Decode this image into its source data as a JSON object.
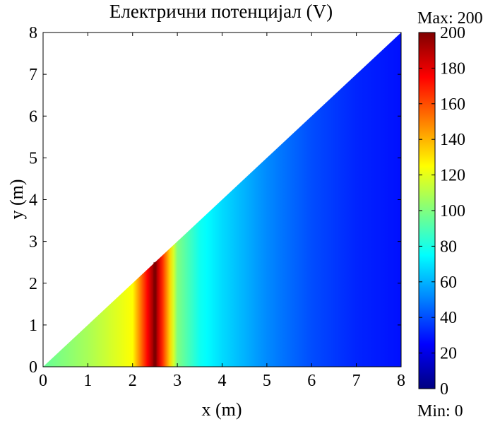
{
  "chart_data": {
    "type": "heatmap",
    "title": "Електрични потенцијал (V)",
    "xlabel": "x (m)",
    "ylabel": "y (m)",
    "xlim": [
      0,
      8
    ],
    "ylim": [
      0,
      8
    ],
    "x_ticks": [
      "0",
      "1",
      "2",
      "3",
      "4",
      "5",
      "6",
      "7",
      "8"
    ],
    "y_ticks": [
      "0",
      "1",
      "2",
      "3",
      "4",
      "5",
      "6",
      "7",
      "8"
    ],
    "domain": {
      "shape": "triangle",
      "vertices": [
        [
          0,
          0
        ],
        [
          8,
          0
        ],
        [
          8,
          8
        ]
      ]
    },
    "electrode": {
      "x": 2.5,
      "y_range": [
        0,
        2.5
      ],
      "potential": 200
    },
    "potential_profile": {
      "x": [
        0,
        1,
        2,
        2.5,
        3,
        3.5,
        4,
        5,
        6,
        7,
        8
      ],
      "value": [
        95,
        108,
        125,
        200,
        100,
        78,
        68,
        52,
        40,
        32,
        28
      ]
    },
    "colorbar": {
      "colormap": "jet",
      "min": 0,
      "max": 200,
      "ticks": [
        "0",
        "20",
        "40",
        "60",
        "80",
        "100",
        "120",
        "140",
        "160",
        "180",
        "200"
      ],
      "max_label": "Max: 200",
      "min_label": "Min: 0"
    },
    "grid": false
  }
}
